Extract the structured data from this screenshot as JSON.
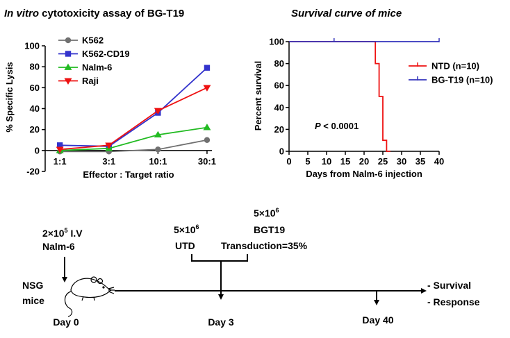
{
  "chart_data": [
    {
      "type": "line",
      "title_italic": "In vitro",
      "title_rest": " cytotoxicity assay of BG-T19",
      "xlabel": "Effector : Target ratio",
      "ylabel": "% Specific Lysis",
      "categories": [
        "1:1",
        "3:1",
        "10:1",
        "30:1"
      ],
      "ylim": [
        -20,
        100
      ],
      "yticks": [
        "-20",
        "0",
        "20",
        "40",
        "60",
        "80",
        "100"
      ],
      "legend_placement": "top-left",
      "series": [
        {
          "name": "K562",
          "color": "#707070",
          "marker": "circle",
          "values": [
            -1,
            -1,
            1,
            10
          ]
        },
        {
          "name": "K562-CD19",
          "color": "#3333cc",
          "marker": "square",
          "values": [
            5,
            4,
            36,
            79
          ]
        },
        {
          "name": "Nalm-6",
          "color": "#22bb22",
          "marker": "triangle-up",
          "values": [
            0,
            2,
            15,
            22
          ]
        },
        {
          "name": "Raji",
          "color": "#ee1111",
          "marker": "triangle-down",
          "values": [
            1,
            5,
            38,
            60
          ]
        }
      ]
    },
    {
      "type": "line",
      "subtype": "step",
      "title": "Survival curve of mice",
      "xlabel": "Days from Nalm-6 injection",
      "ylabel": "Percent survival",
      "xlim": [
        0,
        40
      ],
      "ylim": [
        0,
        100
      ],
      "xticks": [
        "0",
        "5",
        "10",
        "15",
        "20",
        "25",
        "30",
        "35",
        "40"
      ],
      "yticks": [
        "0",
        "20",
        "40",
        "60",
        "80",
        "100"
      ],
      "legend_placement": "right",
      "annotation_p": "P",
      "annotation_rest": " < 0.0001",
      "series": [
        {
          "name": "NTD (n=10)",
          "color": "#ee1111",
          "x": [
            0,
            23,
            23,
            24,
            24,
            25,
            25,
            26,
            26,
            27
          ],
          "y": [
            100,
            100,
            80,
            80,
            50,
            50,
            10,
            10,
            0,
            0
          ]
        },
        {
          "name": "BG-T19 (n=10)",
          "color": "#3333bb",
          "x": [
            0,
            40
          ],
          "y": [
            100,
            100
          ],
          "censor_x": [
            12,
            40
          ]
        }
      ]
    }
  ],
  "timeline": {
    "start_label_line1": "NSG",
    "start_label_line2": "mice",
    "injection_base": "2×10",
    "injection_exp": "5",
    "injection_route": " I.V",
    "injection_cell": "Nalm-6",
    "utd_base": "5×10",
    "utd_exp": "6",
    "utd_label": "UTD",
    "bgt_base": "5×10",
    "bgt_exp": "6",
    "bgt_label": "BGT19",
    "bgt_transduction": "Transduction=35%",
    "day0": "Day 0",
    "day3": "Day 3",
    "day40": "Day 40",
    "outcome1": "- Survival",
    "outcome2": "- Response"
  }
}
